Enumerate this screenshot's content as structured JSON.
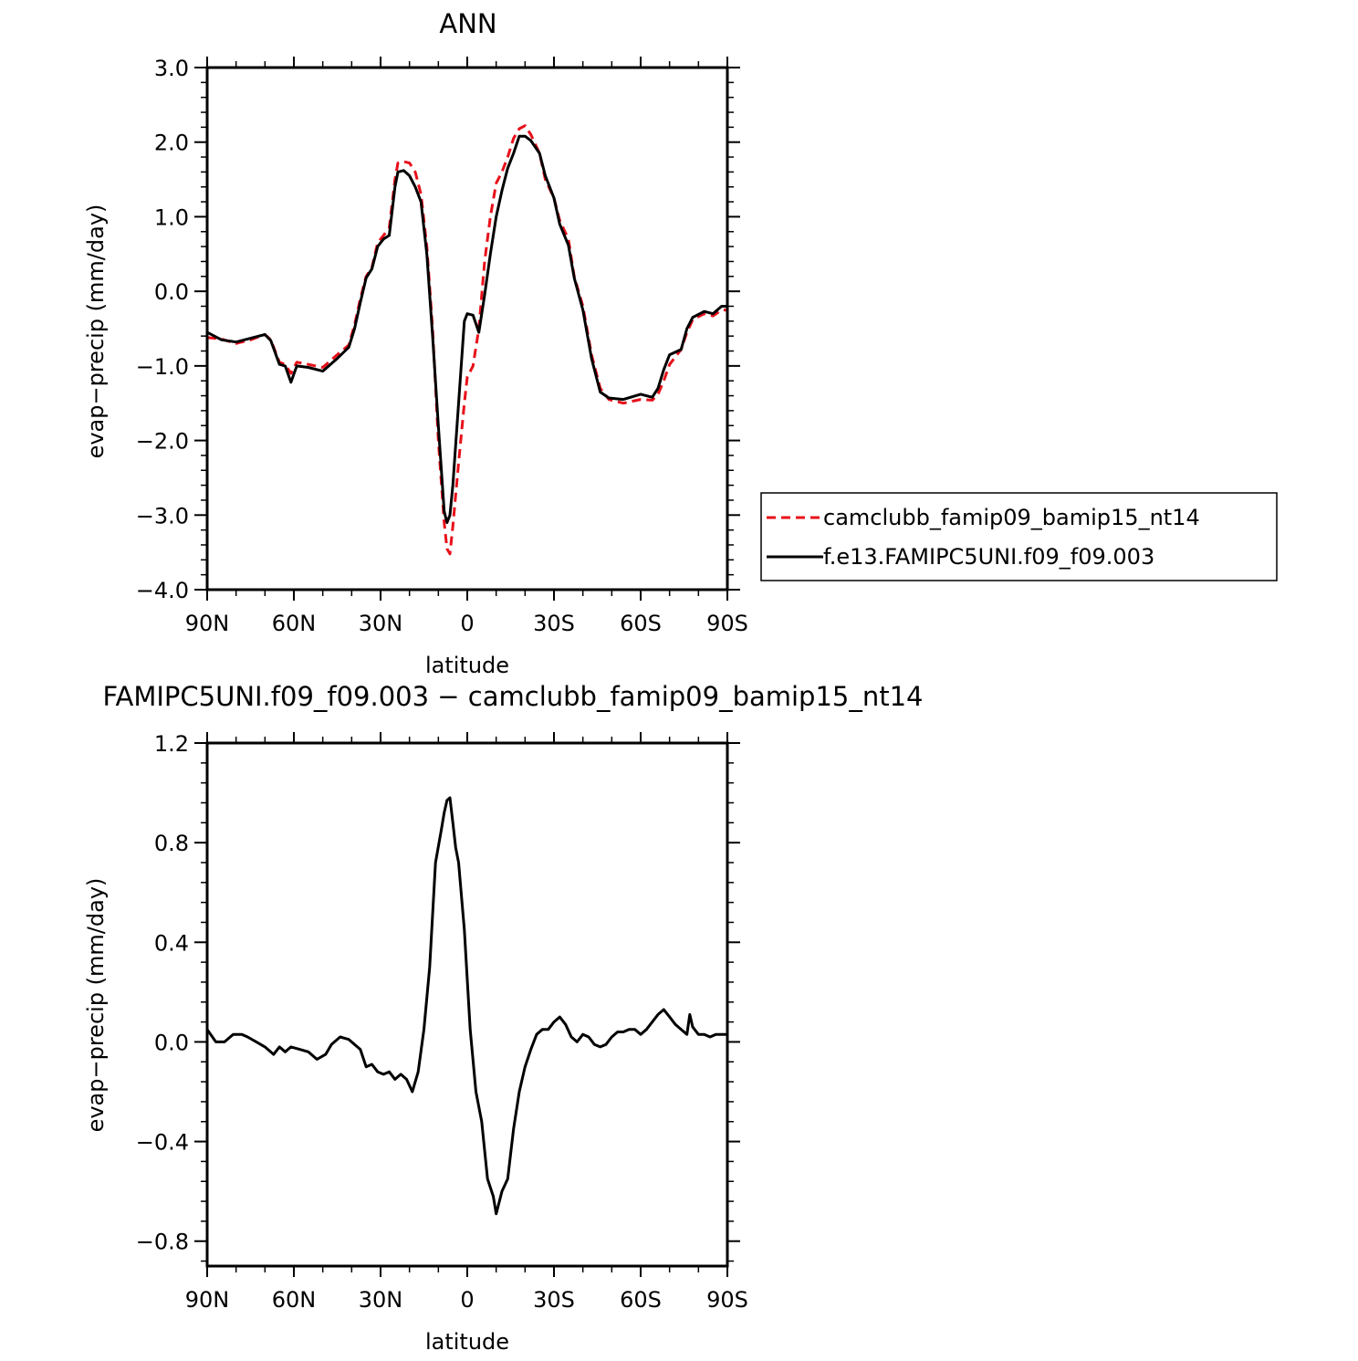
{
  "chart_data": [
    {
      "type": "line",
      "title": "ANN",
      "xlabel": "latitude",
      "ylabel": "evap−precip (mm/day)",
      "xlim": [
        90,
        -90
      ],
      "ylim": [
        -4.0,
        3.0
      ],
      "x_ticks": [
        90,
        60,
        30,
        0,
        -30,
        -60,
        -90
      ],
      "x_tick_labels": [
        "90N",
        "60N",
        "30N",
        "0",
        "30S",
        "60S",
        "90S"
      ],
      "y_ticks": [
        3.0,
        2.0,
        1.0,
        0.0,
        -1.0,
        -2.0,
        -3.0,
        -4.0
      ],
      "y_tick_labels": [
        "3.0",
        "2.0",
        "1.0",
        "0.0",
        "−1.0",
        "−2.0",
        "−3.0",
        "−4.0"
      ],
      "grid": false,
      "legend": "outside-right",
      "series": [
        {
          "name": "camclubb_famip09_bamip15_nt14",
          "color": "#e8101a",
          "dash": "dashed",
          "points": [
            [
              90,
              -0.62
            ],
            [
              85,
              -0.64
            ],
            [
              80,
              -0.7
            ],
            [
              75,
              -0.65
            ],
            [
              70,
              -0.58
            ],
            [
              68,
              -0.65
            ],
            [
              65,
              -0.95
            ],
            [
              63,
              -0.98
            ],
            [
              61,
              -1.1
            ],
            [
              59,
              -0.95
            ],
            [
              55,
              -0.98
            ],
            [
              50,
              -1.02
            ],
            [
              45,
              -0.85
            ],
            [
              41,
              -0.72
            ],
            [
              39,
              -0.45
            ],
            [
              37,
              -0.1
            ],
            [
              35,
              0.2
            ],
            [
              33,
              0.32
            ],
            [
              31,
              0.65
            ],
            [
              29,
              0.75
            ],
            [
              27,
              0.85
            ],
            [
              25,
              1.5
            ],
            [
              24,
              1.72
            ],
            [
              22,
              1.74
            ],
            [
              20,
              1.72
            ],
            [
              18,
              1.6
            ],
            [
              16,
              1.3
            ],
            [
              14,
              0.6
            ],
            [
              12,
              -0.5
            ],
            [
              10,
              -2.0
            ],
            [
              8,
              -3.1
            ],
            [
              7,
              -3.45
            ],
            [
              6,
              -3.52
            ],
            [
              5,
              -3.15
            ],
            [
              3,
              -2.3
            ],
            [
              1,
              -1.5
            ],
            [
              0,
              -1.15
            ],
            [
              -2,
              -1.0
            ],
            [
              -4,
              -0.5
            ],
            [
              -6,
              0.4
            ],
            [
              -8,
              1.0
            ],
            [
              -10,
              1.45
            ],
            [
              -12,
              1.6
            ],
            [
              -14,
              1.8
            ],
            [
              -16,
              2.05
            ],
            [
              -18,
              2.18
            ],
            [
              -20,
              2.22
            ],
            [
              -22,
              2.1
            ],
            [
              -25,
              1.85
            ],
            [
              -27,
              1.5
            ],
            [
              -30,
              1.25
            ],
            [
              -32,
              0.95
            ],
            [
              -35,
              0.7
            ],
            [
              -37,
              0.2
            ],
            [
              -40,
              -0.2
            ],
            [
              -43,
              -0.85
            ],
            [
              -46,
              -1.3
            ],
            [
              -49,
              -1.45
            ],
            [
              -54,
              -1.5
            ],
            [
              -60,
              -1.45
            ],
            [
              -64,
              -1.46
            ],
            [
              -66,
              -1.38
            ],
            [
              -68,
              -1.2
            ],
            [
              -70,
              -0.98
            ],
            [
              -74,
              -0.78
            ],
            [
              -76,
              -0.55
            ],
            [
              -78,
              -0.38
            ],
            [
              -82,
              -0.3
            ],
            [
              -85,
              -0.33
            ],
            [
              -88,
              -0.25
            ],
            [
              -90,
              -0.25
            ]
          ]
        },
        {
          "name": "f.e13.FAMIPC5UNI.f09_f09.003",
          "color": "#000000",
          "dash": "solid",
          "points": [
            [
              90,
              -0.55
            ],
            [
              85,
              -0.65
            ],
            [
              80,
              -0.68
            ],
            [
              75,
              -0.63
            ],
            [
              70,
              -0.58
            ],
            [
              68,
              -0.66
            ],
            [
              65,
              -0.98
            ],
            [
              63,
              -1.0
            ],
            [
              61,
              -1.22
            ],
            [
              59,
              -1.0
            ],
            [
              55,
              -1.02
            ],
            [
              50,
              -1.07
            ],
            [
              45,
              -0.9
            ],
            [
              41,
              -0.75
            ],
            [
              39,
              -0.5
            ],
            [
              37,
              -0.15
            ],
            [
              35,
              0.18
            ],
            [
              33,
              0.3
            ],
            [
              31,
              0.6
            ],
            [
              29,
              0.7
            ],
            [
              27,
              0.75
            ],
            [
              25,
              1.4
            ],
            [
              24,
              1.6
            ],
            [
              22,
              1.62
            ],
            [
              20,
              1.55
            ],
            [
              18,
              1.4
            ],
            [
              16,
              1.2
            ],
            [
              14,
              0.5
            ],
            [
              12,
              -0.6
            ],
            [
              10,
              -1.8
            ],
            [
              8,
              -2.95
            ],
            [
              7,
              -3.1
            ],
            [
              6,
              -3.0
            ],
            [
              5,
              -2.6
            ],
            [
              3,
              -1.5
            ],
            [
              1,
              -0.4
            ],
            [
              0,
              -0.3
            ],
            [
              -2,
              -0.32
            ],
            [
              -4,
              -0.55
            ],
            [
              -6,
              -0.05
            ],
            [
              -8,
              0.5
            ],
            [
              -10,
              1.0
            ],
            [
              -12,
              1.35
            ],
            [
              -14,
              1.65
            ],
            [
              -16,
              1.85
            ],
            [
              -18,
              2.08
            ],
            [
              -20,
              2.08
            ],
            [
              -22,
              2.02
            ],
            [
              -25,
              1.85
            ],
            [
              -27,
              1.55
            ],
            [
              -30,
              1.25
            ],
            [
              -32,
              0.9
            ],
            [
              -35,
              0.62
            ],
            [
              -37,
              0.18
            ],
            [
              -40,
              -0.25
            ],
            [
              -43,
              -0.9
            ],
            [
              -46,
              -1.35
            ],
            [
              -49,
              -1.43
            ],
            [
              -54,
              -1.45
            ],
            [
              -60,
              -1.38
            ],
            [
              -64,
              -1.42
            ],
            [
              -66,
              -1.3
            ],
            [
              -68,
              -1.05
            ],
            [
              -70,
              -0.85
            ],
            [
              -74,
              -0.78
            ],
            [
              -76,
              -0.5
            ],
            [
              -78,
              -0.35
            ],
            [
              -82,
              -0.27
            ],
            [
              -85,
              -0.3
            ],
            [
              -88,
              -0.2
            ],
            [
              -90,
              -0.2
            ]
          ]
        }
      ]
    },
    {
      "type": "line",
      "title": "FAMIPC5UNI.f09_f09.003 − camclubb_famip09_bamip15_nt14",
      "xlabel": "latitude",
      "ylabel": "evap−precip (mm/day)",
      "xlim": [
        90,
        -90
      ],
      "ylim": [
        -0.9,
        1.2
      ],
      "x_ticks": [
        90,
        60,
        30,
        0,
        -30,
        -60,
        -90
      ],
      "x_tick_labels": [
        "90N",
        "60N",
        "30N",
        "0",
        "30S",
        "60S",
        "90S"
      ],
      "y_ticks": [
        1.2,
        0.8,
        0.4,
        0.0,
        -0.4,
        -0.8
      ],
      "y_tick_labels": [
        "1.2",
        "0.8",
        "0.4",
        "0.0",
        "−0.4",
        "−0.8"
      ],
      "grid": false,
      "series": [
        {
          "color": "#000000",
          "dash": "solid",
          "points": [
            [
              90,
              0.05
            ],
            [
              87,
              0.0
            ],
            [
              84,
              0.0
            ],
            [
              81,
              0.03
            ],
            [
              78,
              0.03
            ],
            [
              76,
              0.02
            ],
            [
              73,
              0.0
            ],
            [
              70,
              -0.02
            ],
            [
              67,
              -0.05
            ],
            [
              65,
              -0.02
            ],
            [
              63,
              -0.04
            ],
            [
              61,
              -0.02
            ],
            [
              58,
              -0.03
            ],
            [
              55,
              -0.04
            ],
            [
              52,
              -0.07
            ],
            [
              49,
              -0.05
            ],
            [
              47,
              -0.01
            ],
            [
              44,
              0.02
            ],
            [
              41,
              0.01
            ],
            [
              39,
              -0.01
            ],
            [
              37,
              -0.03
            ],
            [
              35,
              -0.1
            ],
            [
              33,
              -0.09
            ],
            [
              31,
              -0.12
            ],
            [
              29,
              -0.13
            ],
            [
              27,
              -0.12
            ],
            [
              25,
              -0.15
            ],
            [
              23,
              -0.13
            ],
            [
              21,
              -0.15
            ],
            [
              19,
              -0.2
            ],
            [
              17,
              -0.12
            ],
            [
              15,
              0.05
            ],
            [
              13,
              0.3
            ],
            [
              11,
              0.72
            ],
            [
              9,
              0.85
            ],
            [
              8,
              0.92
            ],
            [
              7,
              0.97
            ],
            [
              6,
              0.98
            ],
            [
              5,
              0.88
            ],
            [
              4,
              0.78
            ],
            [
              3,
              0.72
            ],
            [
              1,
              0.45
            ],
            [
              -1,
              0.05
            ],
            [
              -3,
              -0.2
            ],
            [
              -5,
              -0.32
            ],
            [
              -7,
              -0.55
            ],
            [
              -9,
              -0.62
            ],
            [
              -10,
              -0.69
            ],
            [
              -12,
              -0.6
            ],
            [
              -14,
              -0.55
            ],
            [
              -16,
              -0.35
            ],
            [
              -18,
              -0.2
            ],
            [
              -20,
              -0.1
            ],
            [
              -22,
              -0.03
            ],
            [
              -24,
              0.03
            ],
            [
              -26,
              0.05
            ],
            [
              -28,
              0.05
            ],
            [
              -30,
              0.08
            ],
            [
              -32,
              0.1
            ],
            [
              -34,
              0.07
            ],
            [
              -36,
              0.02
            ],
            [
              -38,
              0.0
            ],
            [
              -40,
              0.03
            ],
            [
              -42,
              0.02
            ],
            [
              -44,
              -0.01
            ],
            [
              -46,
              -0.02
            ],
            [
              -48,
              -0.01
            ],
            [
              -50,
              0.02
            ],
            [
              -52,
              0.04
            ],
            [
              -54,
              0.04
            ],
            [
              -56,
              0.05
            ],
            [
              -58,
              0.05
            ],
            [
              -60,
              0.03
            ],
            [
              -62,
              0.05
            ],
            [
              -64,
              0.08
            ],
            [
              -66,
              0.11
            ],
            [
              -68,
              0.13
            ],
            [
              -70,
              0.1
            ],
            [
              -72,
              0.07
            ],
            [
              -74,
              0.05
            ],
            [
              -76,
              0.03
            ],
            [
              -77,
              0.11
            ],
            [
              -78,
              0.06
            ],
            [
              -80,
              0.03
            ],
            [
              -82,
              0.03
            ],
            [
              -84,
              0.02
            ],
            [
              -86,
              0.03
            ],
            [
              -88,
              0.03
            ],
            [
              -90,
              0.03
            ]
          ]
        }
      ]
    }
  ]
}
